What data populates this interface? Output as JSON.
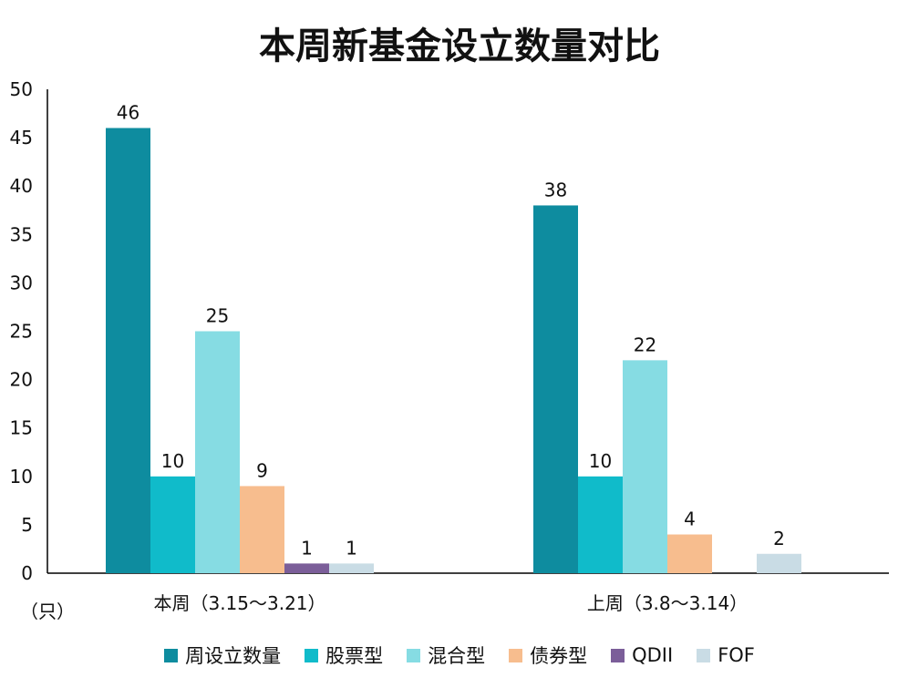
{
  "chart_data": {
    "type": "bar",
    "title": "本周新基金设立数量对比",
    "unit_label": "（只）",
    "categories": [
      "本周（3.15～3.21）",
      "上周（3.8～3.14）"
    ],
    "series": [
      {
        "name": "周设立数量",
        "color": "#0E8C9F",
        "values": [
          46,
          38
        ]
      },
      {
        "name": "股票型",
        "color": "#10BBCA",
        "values": [
          10,
          10
        ]
      },
      {
        "name": "混合型",
        "color": "#86DCE3",
        "values": [
          25,
          22
        ]
      },
      {
        "name": "债券型",
        "color": "#F7BD8E",
        "values": [
          9,
          4
        ]
      },
      {
        "name": "QDII",
        "color": "#7B5E99",
        "values": [
          1,
          0
        ]
      },
      {
        "name": "FOF",
        "color": "#C9DCE5",
        "values": [
          1,
          2
        ]
      }
    ],
    "data_labels": [
      [
        "46",
        "10",
        "25",
        "9",
        "1",
        "1"
      ],
      [
        "38",
        "10",
        "22",
        "4",
        "",
        "2"
      ]
    ],
    "ylim": [
      0,
      50
    ],
    "yticks": [
      0,
      5,
      10,
      15,
      20,
      25,
      30,
      35,
      40,
      45,
      50
    ],
    "grid": false,
    "legend_position": "bottom"
  }
}
